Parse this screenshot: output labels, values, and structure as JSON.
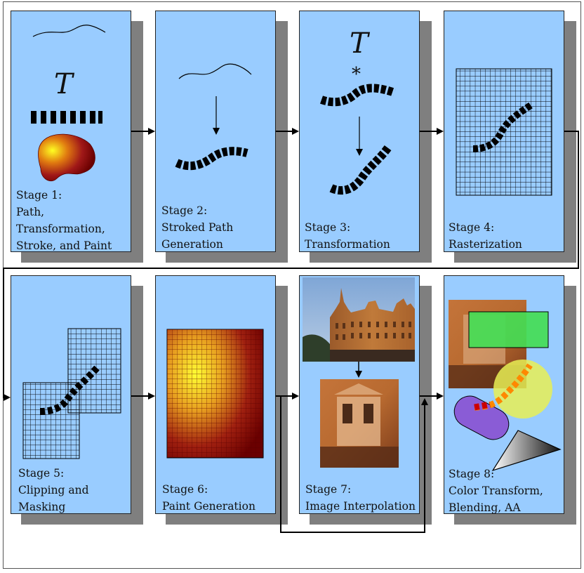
{
  "stages": [
    {
      "id": 1,
      "lines": [
        "Stage 1:",
        "Path,",
        "Transformation,",
        "Stroke, and Paint"
      ],
      "glyph": "T"
    },
    {
      "id": 2,
      "lines": [
        "Stage 2:",
        "Stroked Path",
        "Generation"
      ]
    },
    {
      "id": 3,
      "lines": [
        "Stage 3:",
        "Transformation"
      ],
      "glyph": "T",
      "operator": "*"
    },
    {
      "id": 4,
      "lines": [
        "Stage 4:",
        "Rasterization"
      ]
    },
    {
      "id": 5,
      "lines": [
        "Stage 5:",
        "Clipping and",
        "Masking"
      ]
    },
    {
      "id": 6,
      "lines": [
        "Stage 6:",
        "Paint Generation"
      ]
    },
    {
      "id": 7,
      "lines": [
        "Stage 7:",
        "Image Interpolation"
      ]
    },
    {
      "id": 8,
      "lines": [
        "Stage 8:",
        "Color Transform,",
        "Blending, AA"
      ]
    }
  ],
  "colors": {
    "card_fill": "#99ccff",
    "shadow": "#7f7f7f",
    "stroke_black": "#111111",
    "paint_red": "#8b0000",
    "paint_yellow": "#ffee00",
    "green_rect": "#44dd55",
    "yellow_circle": "#e8ee55",
    "purple_capsule": "#8a5cd6",
    "dash_orange": "#ff8800"
  }
}
